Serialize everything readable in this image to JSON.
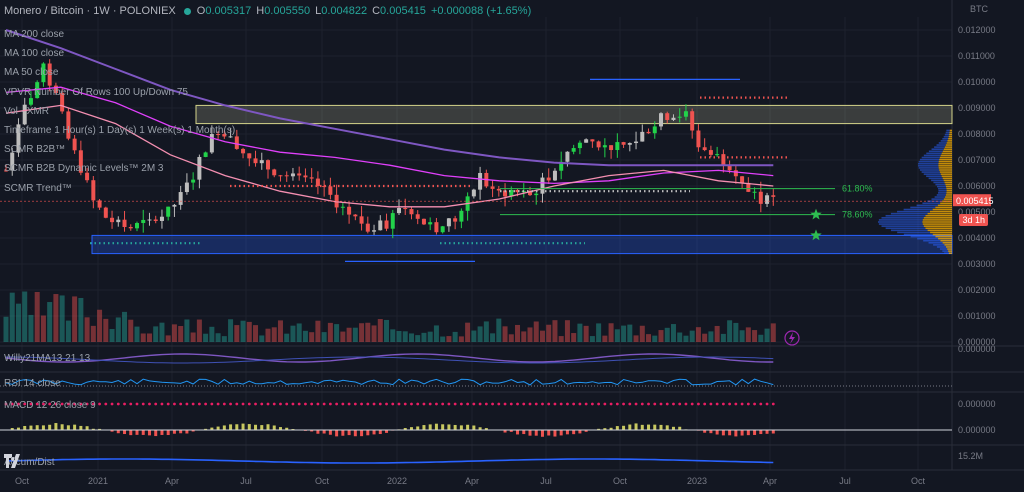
{
  "header": {
    "symbol": "Monero / Bitcoin · 1W · POLONIEX",
    "o_label": "O",
    "o_val": "0.005317",
    "h_label": "H",
    "h_val": "0.005550",
    "l_label": "L",
    "l_val": "0.004822",
    "c_label": "C",
    "c_val": "0.005415",
    "change": "+0.000088 (+1.65%)"
  },
  "indicators": [
    "MA 200 close",
    "MA 100 close",
    "MA 50 close",
    "VPVR Number Of Rows 100 Up/Down 75",
    "Vol · XMR",
    "Timeframe 1 Hour(s) 1 Day(s) 1 Week(s) 1 Month(s)",
    "SCMR B2B™",
    "SCMR B2B Dynamic Levels™ 2M 3",
    "SCMR Trend™"
  ],
  "subpanes": {
    "willy": "Willy21MA13 21 13",
    "rsi": "RSI 14 close",
    "macd": "MACD 12 26 close 9",
    "accdist": "Accum/Dist"
  },
  "currency": "BTC",
  "countdown_badge": "3d 1h",
  "colors": {
    "up": "#26a69a",
    "up_bright": "#22d24a",
    "down": "#ef5350",
    "ma200": "#7e57c2",
    "ma100": "#e040fb",
    "ma50": "#f48fb1",
    "zone_top": "#c8c8a0",
    "zone_bottom": "#2962ff",
    "fib": "#2ebd50"
  },
  "chart_data": {
    "type": "candlestick",
    "x_ticks": [
      "Oct",
      "2021",
      "Apr",
      "Jul",
      "Oct",
      "2022",
      "Apr",
      "Jul",
      "Oct",
      "2023",
      "Apr",
      "Jul",
      "Oct"
    ],
    "y_ticks": [
      "0.012000",
      "0.011000",
      "0.010000",
      "0.009000",
      "0.008000",
      "0.007000",
      "0.006000",
      "0.005000",
      "0.004000",
      "0.003000",
      "0.002000",
      "0.001000",
      "0.000000"
    ],
    "y_range": [
      0.0,
      0.0125
    ],
    "last_price": "0.005415",
    "fib_levels": [
      {
        "label": "61.80%",
        "value": 0.0059
      },
      {
        "label": "78.60%",
        "value": 0.0049
      }
    ],
    "resistance_zone": [
      0.0084,
      0.0091
    ],
    "support_zone": [
      0.0034,
      0.0041
    ],
    "close_path": [
      {
        "t": 0,
        "c": 0.0066
      },
      {
        "t": 3,
        "c": 0.009
      },
      {
        "t": 6,
        "c": 0.0105
      },
      {
        "t": 8,
        "c": 0.0095
      },
      {
        "t": 10,
        "c": 0.0078
      },
      {
        "t": 12,
        "c": 0.0067
      },
      {
        "t": 14,
        "c": 0.0054
      },
      {
        "t": 16,
        "c": 0.0048
      },
      {
        "t": 18,
        "c": 0.0045
      },
      {
        "t": 20,
        "c": 0.0044
      },
      {
        "t": 23,
        "c": 0.0046
      },
      {
        "t": 26,
        "c": 0.005
      },
      {
        "t": 28,
        "c": 0.0056
      },
      {
        "t": 30,
        "c": 0.0064
      },
      {
        "t": 32,
        "c": 0.0075
      },
      {
        "t": 34,
        "c": 0.0082
      },
      {
        "t": 36,
        "c": 0.008
      },
      {
        "t": 38,
        "c": 0.0073
      },
      {
        "t": 40,
        "c": 0.0069
      },
      {
        "t": 43,
        "c": 0.0066
      },
      {
        "t": 46,
        "c": 0.0063
      },
      {
        "t": 50,
        "c": 0.006
      },
      {
        "t": 52,
        "c": 0.0056
      },
      {
        "t": 55,
        "c": 0.0049
      },
      {
        "t": 58,
        "c": 0.0044
      },
      {
        "t": 61,
        "c": 0.0045
      },
      {
        "t": 63,
        "c": 0.0052
      },
      {
        "t": 65,
        "c": 0.0051
      },
      {
        "t": 67,
        "c": 0.0046
      },
      {
        "t": 69,
        "c": 0.0044
      },
      {
        "t": 72,
        "c": 0.0047
      },
      {
        "t": 74,
        "c": 0.0054
      },
      {
        "t": 76,
        "c": 0.0064
      },
      {
        "t": 78,
        "c": 0.0057
      },
      {
        "t": 81,
        "c": 0.0058
      },
      {
        "t": 84,
        "c": 0.0056
      },
      {
        "t": 87,
        "c": 0.0064
      },
      {
        "t": 90,
        "c": 0.0073
      },
      {
        "t": 93,
        "c": 0.0078
      },
      {
        "t": 96,
        "c": 0.0076
      },
      {
        "t": 99,
        "c": 0.0074
      },
      {
        "t": 102,
        "c": 0.008
      },
      {
        "t": 105,
        "c": 0.0086
      },
      {
        "t": 107,
        "c": 0.0088
      },
      {
        "t": 109,
        "c": 0.0087
      },
      {
        "t": 111,
        "c": 0.0076
      },
      {
        "t": 113,
        "c": 0.0072
      },
      {
        "t": 115,
        "c": 0.007
      },
      {
        "t": 117,
        "c": 0.0066
      },
      {
        "t": 119,
        "c": 0.0058
      },
      {
        "t": 121,
        "c": 0.0055
      },
      {
        "t": 123,
        "c": 0.0054
      }
    ],
    "ma200": [
      0.012,
      0.0113,
      0.0105,
      0.0097,
      0.0091,
      0.0086,
      0.0082,
      0.0078,
      0.0074,
      0.0071,
      0.0069,
      0.0068,
      0.0068,
      0.0068,
      0.0068
    ],
    "ma100": [
      0.0096,
      0.0098,
      0.0092,
      0.0083,
      0.0077,
      0.0073,
      0.0071,
      0.0068,
      0.0064,
      0.0062,
      0.0061,
      0.0062,
      0.0065,
      0.0066,
      0.0064
    ],
    "ma50": [
      0.0088,
      0.0091,
      0.0084,
      0.0072,
      0.0064,
      0.0058,
      0.0054,
      0.0052,
      0.0052,
      0.0055,
      0.006,
      0.0064,
      0.0066,
      0.0062,
      0.006
    ],
    "subpane_ticks": {
      "willy": "0.000000",
      "macd_top": "0.000000",
      "macd_bottom": "0.000000",
      "accdist": "15.2M"
    }
  }
}
